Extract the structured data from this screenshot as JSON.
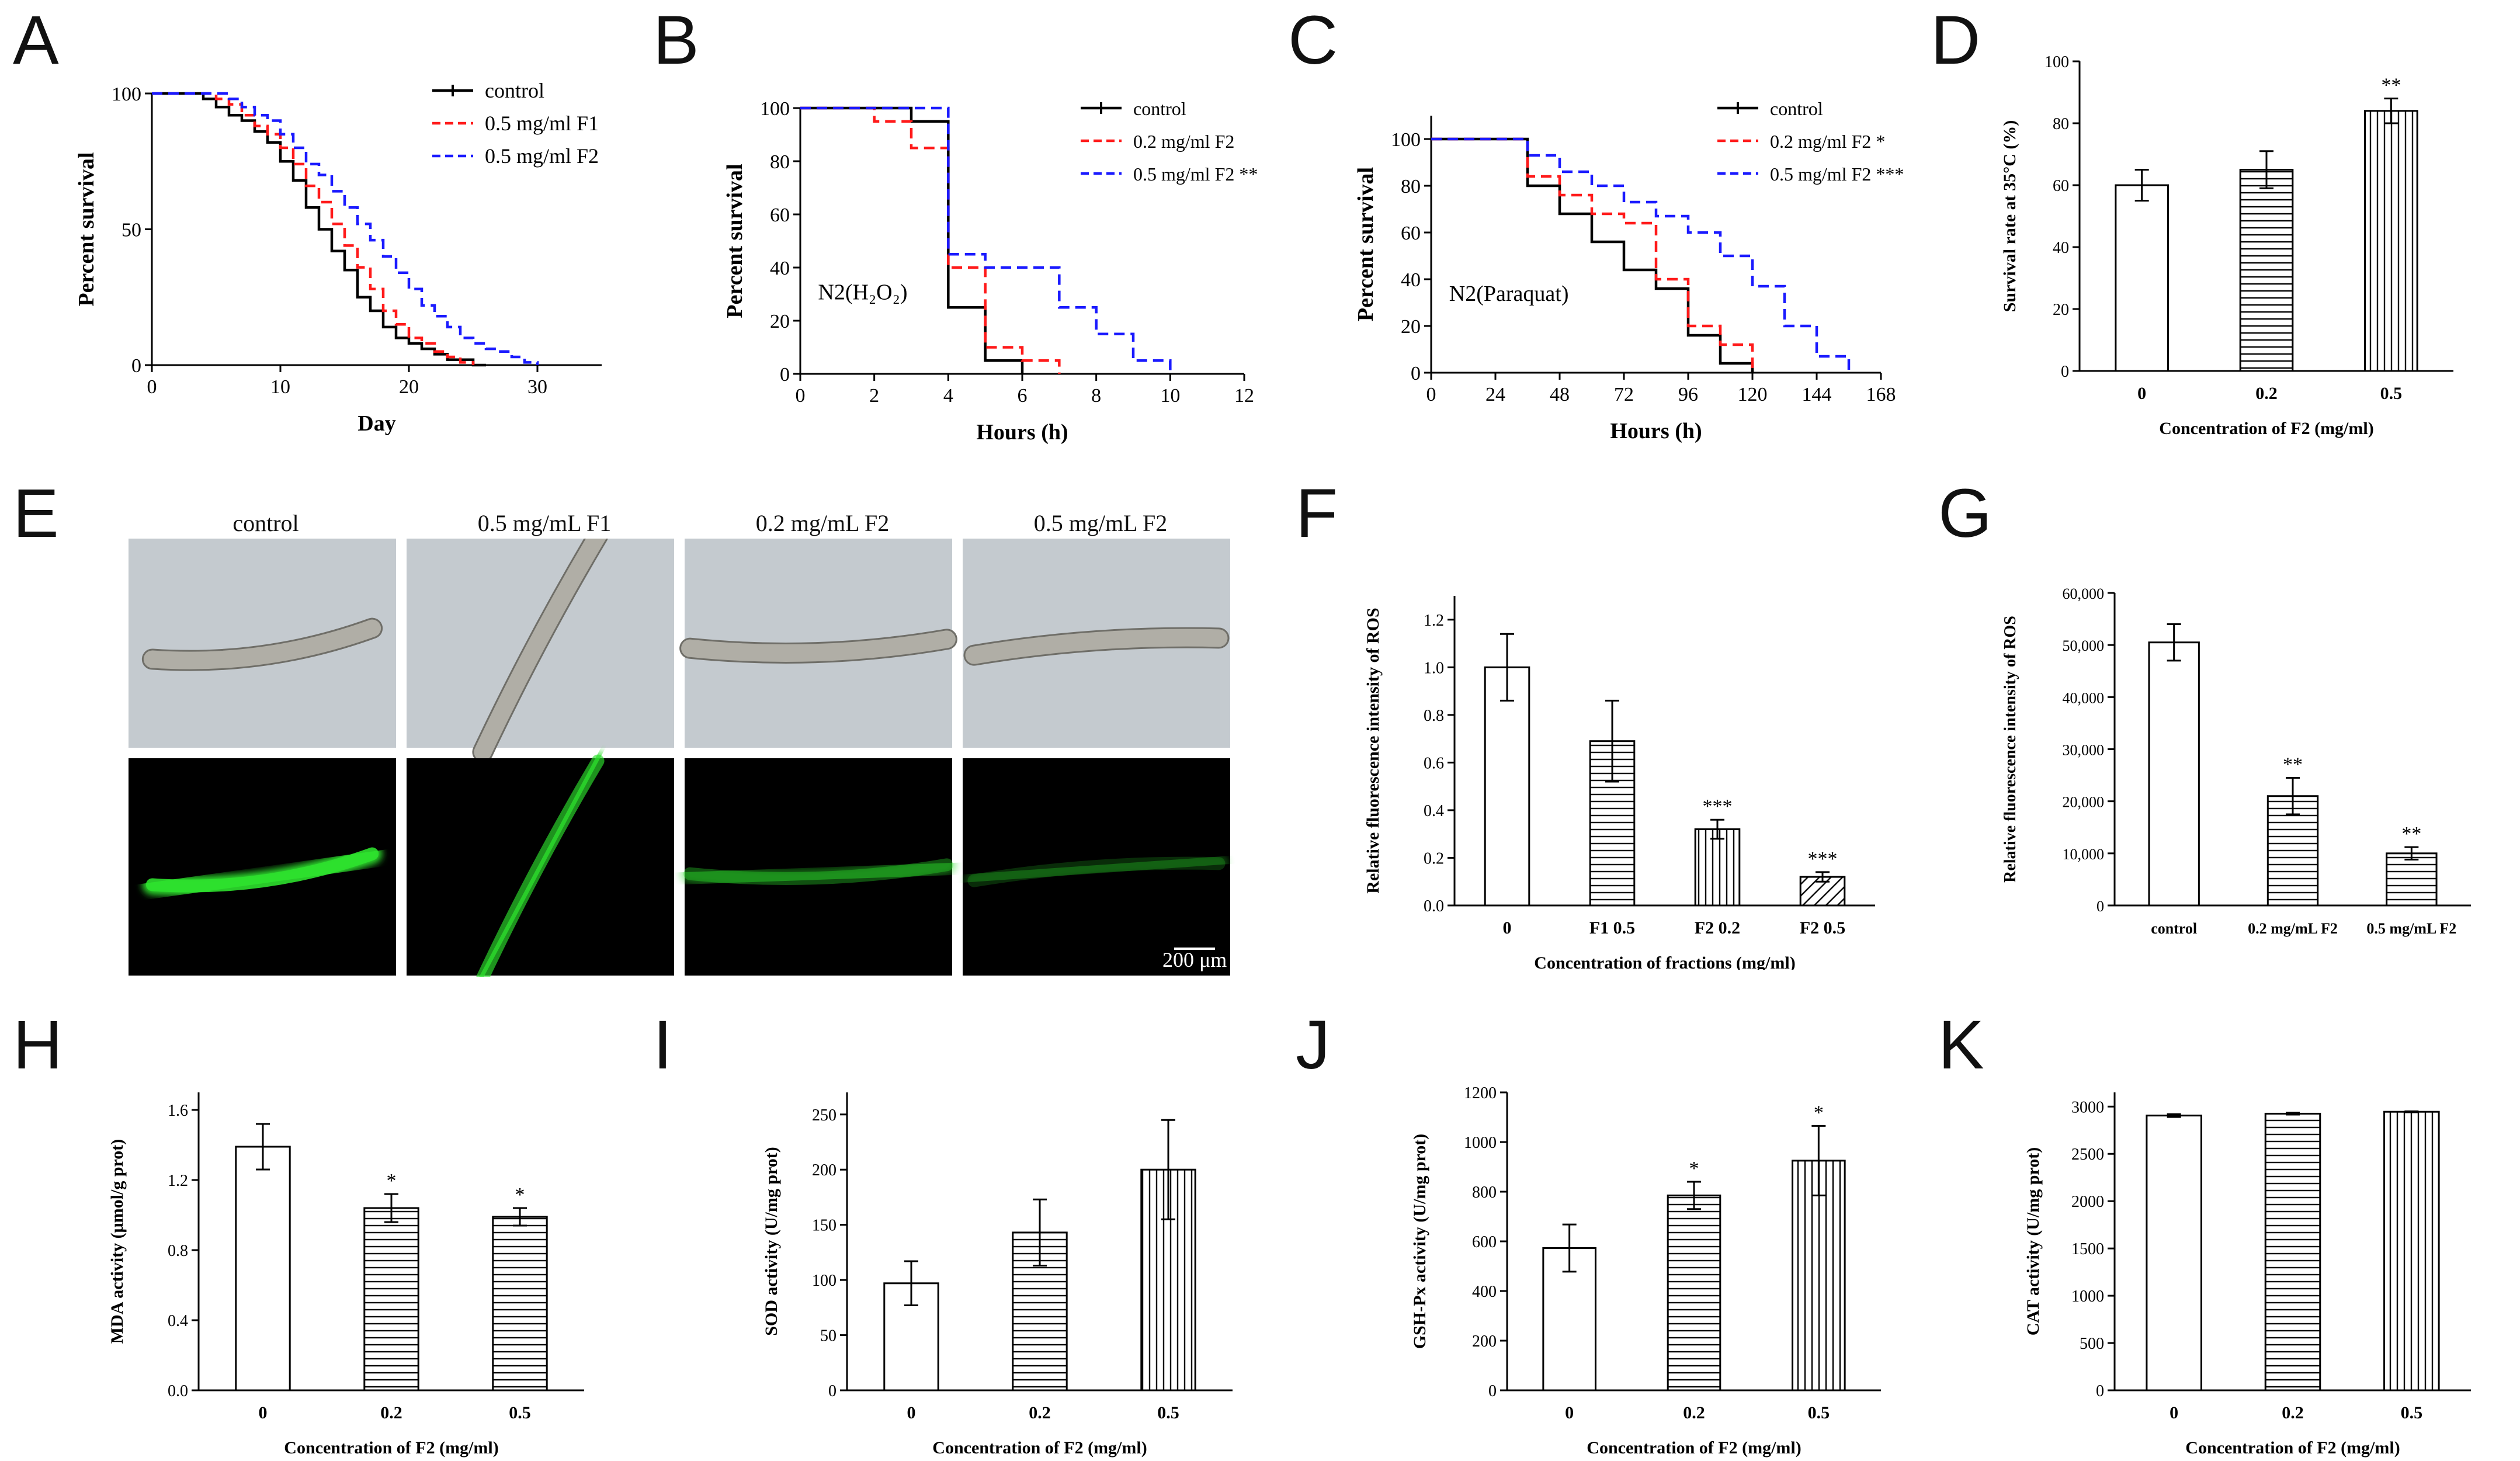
{
  "panel_letters": {
    "A": "A",
    "B": "B",
    "C": "C",
    "D": "D",
    "E": "E",
    "F": "F",
    "G": "G",
    "H": "H",
    "I": "I",
    "J": "J",
    "K": "K"
  },
  "microscopy": {
    "columns": [
      "control",
      "0.5 mg/mL F1",
      "0.2 mg/mL F2",
      "0.5 mg/mL F2"
    ],
    "scale_bar": "200 μm",
    "fluorescence_levels": [
      1.0,
      0.69,
      0.32,
      0.12
    ],
    "colors": {
      "brightfield": "#c4cacf",
      "fluorescence": "#000000",
      "worm_fill": "#b0aea6",
      "worm_edge": "#6f6e68",
      "gfp": "#2ee02e"
    }
  },
  "colors": {
    "control": "#000000",
    "f1": "#ff1a1a",
    "f2": "#1a1aff",
    "axis": "#000000"
  },
  "chart_data": [
    {
      "id": "A",
      "type": "line",
      "step": true,
      "title": "",
      "xlabel": "Day",
      "ylabel": "Percent survival",
      "xlim": [
        0,
        35
      ],
      "ylim": [
        0,
        100
      ],
      "xticks": [
        0,
        10,
        20,
        30
      ],
      "yticks": [
        0,
        50,
        100
      ],
      "legend": "top-right",
      "series": [
        {
          "name": "control",
          "style": "solid",
          "color": "#000000",
          "x": [
            0,
            4,
            5,
            6,
            7,
            8,
            9,
            10,
            11,
            12,
            13,
            14,
            15,
            16,
            17,
            18,
            19,
            20,
            21,
            22,
            23,
            25,
            26
          ],
          "y": [
            100,
            98,
            95,
            92,
            90,
            86,
            82,
            75,
            68,
            58,
            50,
            42,
            35,
            25,
            20,
            14,
            10,
            8,
            6,
            4,
            2,
            0,
            0
          ]
        },
        {
          "name": "0.5 mg/ml F1",
          "style": "dashed",
          "color": "#ff1a1a",
          "x": [
            0,
            5,
            6,
            7,
            8,
            9,
            10,
            11,
            12,
            13,
            14,
            15,
            16,
            17,
            18,
            19,
            20,
            21,
            22,
            23,
            24,
            25
          ],
          "y": [
            100,
            98,
            96,
            92,
            88,
            85,
            80,
            74,
            66,
            60,
            52,
            44,
            36,
            28,
            20,
            15,
            10,
            8,
            5,
            3,
            1,
            0
          ]
        },
        {
          "name": "0.5 mg/ml F2",
          "style": "dashed",
          "color": "#1a1aff",
          "x": [
            0,
            6,
            7,
            8,
            9,
            10,
            11,
            12,
            13,
            14,
            15,
            16,
            17,
            18,
            19,
            20,
            21,
            22,
            23,
            24,
            25,
            26,
            27,
            28,
            29,
            30
          ],
          "y": [
            100,
            98,
            95,
            92,
            90,
            85,
            80,
            74,
            70,
            64,
            58,
            52,
            46,
            40,
            34,
            28,
            22,
            18,
            14,
            10,
            8,
            6,
            5,
            3,
            1,
            0
          ]
        }
      ]
    },
    {
      "id": "B",
      "type": "line",
      "step": true,
      "title": "",
      "xlabel": "Hours (h)",
      "ylabel": "Percent survival",
      "annotation": "N2(H₂O₂)",
      "xlim": [
        0,
        12
      ],
      "ylim": [
        0,
        100
      ],
      "xticks": [
        0,
        2,
        4,
        6,
        8,
        10,
        12
      ],
      "yticks": [
        0,
        20,
        40,
        60,
        80,
        100
      ],
      "legend": "top-right",
      "series": [
        {
          "name": "control",
          "style": "solid",
          "color": "#000000",
          "x": [
            0,
            3,
            4,
            5,
            6
          ],
          "y": [
            100,
            95,
            25,
            5,
            0
          ]
        },
        {
          "name": "0.2 mg/ml F2",
          "style": "dashed",
          "color": "#ff1a1a",
          "x": [
            0,
            2,
            3,
            4,
            5,
            6,
            7
          ],
          "y": [
            100,
            95,
            85,
            40,
            10,
            5,
            0
          ]
        },
        {
          "name": "0.5 mg/ml F2 **",
          "style": "dashed",
          "color": "#1a1aff",
          "x": [
            0,
            4,
            5,
            7,
            8,
            9,
            10
          ],
          "y": [
            100,
            45,
            40,
            25,
            15,
            5,
            0
          ]
        }
      ]
    },
    {
      "id": "C",
      "type": "line",
      "step": true,
      "title": "",
      "xlabel": "Hours (h)",
      "ylabel": "Percent survival",
      "annotation": "N2(Paraquat)",
      "xlim": [
        0,
        168
      ],
      "ylim": [
        0,
        110
      ],
      "xticks": [
        0,
        24,
        48,
        72,
        96,
        120,
        144,
        168
      ],
      "yticks": [
        0,
        20,
        40,
        60,
        80,
        100
      ],
      "legend": "top-right",
      "series": [
        {
          "name": "control",
          "style": "solid",
          "color": "#000000",
          "x": [
            0,
            36,
            48,
            60,
            72,
            84,
            96,
            108,
            120
          ],
          "y": [
            100,
            80,
            68,
            56,
            44,
            36,
            16,
            4,
            0
          ]
        },
        {
          "name": "0.2 mg/ml F2 *",
          "style": "dashed",
          "color": "#ff1a1a",
          "x": [
            0,
            36,
            48,
            60,
            72,
            84,
            96,
            108,
            120
          ],
          "y": [
            100,
            84,
            76,
            68,
            64,
            40,
            20,
            12,
            0
          ]
        },
        {
          "name": "0.5 mg/ml F2 ***",
          "style": "dashed",
          "color": "#1a1aff",
          "x": [
            0,
            36,
            48,
            60,
            72,
            84,
            96,
            108,
            120,
            132,
            144,
            156
          ],
          "y": [
            100,
            93,
            86,
            80,
            73,
            67,
            60,
            50,
            37,
            20,
            7,
            0
          ]
        }
      ]
    },
    {
      "id": "D",
      "type": "bar",
      "xlabel": "Concentration of F2 (mg/ml)",
      "ylabel": "Survival rate at 35°C (%)",
      "categories": [
        "0",
        "0.2",
        "0.5"
      ],
      "values": [
        60,
        65,
        84
      ],
      "errors": [
        5,
        6,
        4
      ],
      "significance": [
        "",
        "",
        "**"
      ],
      "patterns": [
        "none",
        "h",
        "v"
      ],
      "ylim": [
        0,
        100
      ],
      "yticks": [
        0,
        20,
        40,
        60,
        80,
        100
      ],
      "ytick_labels": [
        "0",
        "20",
        "40",
        "60",
        "80",
        "100"
      ]
    },
    {
      "id": "F",
      "type": "bar",
      "xlabel": "Concentration of fractions (mg/ml)",
      "ylabel": "Relative fluorescence intensity of ROS",
      "categories": [
        "0",
        "F1 0.5",
        "F2 0.2",
        "F2 0.5"
      ],
      "values": [
        1.0,
        0.69,
        0.32,
        0.12
      ],
      "errors": [
        0.14,
        0.17,
        0.04,
        0.02
      ],
      "significance": [
        "",
        "",
        "***",
        "***"
      ],
      "patterns": [
        "none",
        "h",
        "v",
        "d"
      ],
      "ylim": [
        0,
        1.3
      ],
      "yticks": [
        0,
        0.2,
        0.4,
        0.6,
        0.8,
        1.0,
        1.2
      ],
      "ytick_labels": [
        "0.0",
        "0.2",
        "0.4",
        "0.6",
        "0.8",
        "1.0",
        "1.2"
      ]
    },
    {
      "id": "G",
      "type": "bar",
      "xlabel": "",
      "ylabel": "Relative fluorescence intensity of ROS",
      "categories": [
        "control",
        "0.2 mg/mL F2",
        "0.5 mg/mL F2"
      ],
      "values": [
        50500,
        21000,
        10000
      ],
      "errors": [
        3500,
        3500,
        1200
      ],
      "significance": [
        "",
        "**",
        "**"
      ],
      "patterns": [
        "none",
        "h",
        "h"
      ],
      "ylim": [
        0,
        60000
      ],
      "yticks": [
        0,
        10000,
        20000,
        30000,
        40000,
        50000,
        60000
      ],
      "ytick_labels": [
        "0",
        "10,000",
        "20,000",
        "30,000",
        "40,000",
        "50,000",
        "60,000"
      ]
    },
    {
      "id": "H",
      "type": "bar",
      "xlabel": "Concentration of F2 (mg/ml)",
      "ylabel": "MDA activity (μmol/g prot)",
      "categories": [
        "0",
        "0.2",
        "0.5"
      ],
      "values": [
        1.39,
        1.04,
        0.99
      ],
      "errors": [
        0.13,
        0.08,
        0.05
      ],
      "significance": [
        "",
        "*",
        "*"
      ],
      "patterns": [
        "none",
        "h",
        "h"
      ],
      "ylim": [
        0,
        1.7
      ],
      "yticks": [
        0,
        0.4,
        0.8,
        1.2,
        1.6
      ],
      "ytick_labels": [
        "0.0",
        "0.4",
        "0.8",
        "1.2",
        "1.6"
      ]
    },
    {
      "id": "I",
      "type": "bar",
      "xlabel": "Concentration of F2 (mg/ml)",
      "ylabel": "SOD activity (U/mg prot)",
      "categories": [
        "0",
        "0.2",
        "0.5"
      ],
      "values": [
        97,
        143,
        200
      ],
      "errors": [
        20,
        30,
        45
      ],
      "significance": [
        "",
        "",
        ""
      ],
      "patterns": [
        "none",
        "h",
        "v"
      ],
      "ylim": [
        0,
        270
      ],
      "yticks": [
        0,
        50,
        100,
        150,
        200,
        250
      ],
      "ytick_labels": [
        "0",
        "50",
        "100",
        "150",
        "200",
        "250"
      ]
    },
    {
      "id": "J",
      "type": "bar",
      "xlabel": "Concentration of F2 (mg/ml)",
      "ylabel": "GSH-Px activity (U/mg prot)",
      "categories": [
        "0",
        "0.2",
        "0.5"
      ],
      "values": [
        573,
        785,
        925
      ],
      "errors": [
        95,
        55,
        140
      ],
      "significance": [
        "",
        "*",
        "*"
      ],
      "patterns": [
        "none",
        "h",
        "v"
      ],
      "ylim": [
        0,
        1200
      ],
      "yticks": [
        0,
        200,
        400,
        600,
        800,
        1000,
        1200
      ],
      "ytick_labels": [
        "0",
        "200",
        "400",
        "600",
        "800",
        "1000",
        "1200"
      ]
    },
    {
      "id": "K",
      "type": "bar",
      "xlabel": "Concentration of F2 (mg/ml)",
      "ylabel": "CAT activity (U/mg prot)",
      "categories": [
        "0",
        "0.2",
        "0.5"
      ],
      "values": [
        2905,
        2925,
        2945
      ],
      "errors": [
        15,
        10,
        5
      ],
      "significance": [
        "",
        "",
        ""
      ],
      "patterns": [
        "none",
        "h",
        "v"
      ],
      "ylim": [
        0,
        3150
      ],
      "yticks": [
        0,
        500,
        1000,
        1500,
        2000,
        2500,
        3000
      ],
      "ytick_labels": [
        "0",
        "500",
        "1000",
        "1500",
        "2000",
        "2500",
        "3000"
      ]
    }
  ]
}
